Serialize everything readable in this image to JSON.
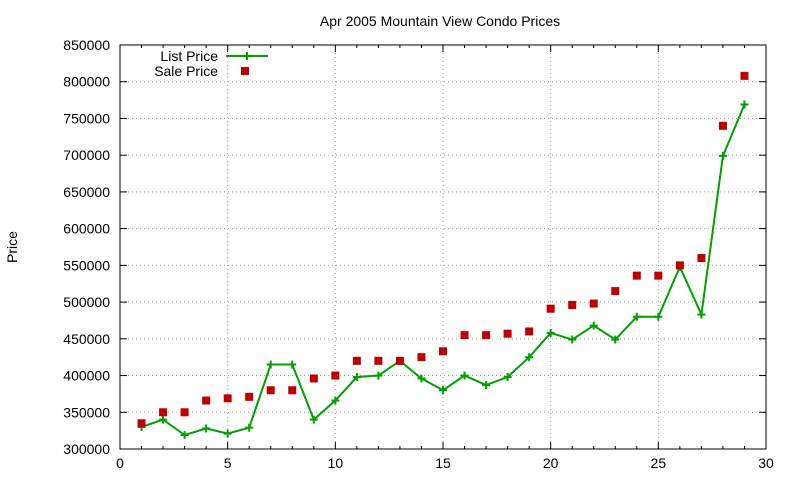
{
  "chart_data": {
    "type": "line",
    "title": "Apr 2005 Mountain View Condo Prices",
    "xlabel": "",
    "ylabel": "Price",
    "xlim": [
      0,
      30
    ],
    "ylim": [
      300000,
      850000
    ],
    "xticks": [
      0,
      5,
      10,
      15,
      20,
      25,
      30
    ],
    "yticks": [
      300000,
      350000,
      400000,
      450000,
      500000,
      550000,
      600000,
      650000,
      700000,
      750000,
      800000,
      850000
    ],
    "grid": true,
    "legend_position": "top-left",
    "series": [
      {
        "name": "List Price",
        "style": "lines+crosses",
        "color": "#00a000",
        "x": [
          1,
          2,
          3,
          4,
          5,
          6,
          7,
          8,
          9,
          10,
          11,
          12,
          13,
          14,
          15,
          16,
          17,
          18,
          19,
          20,
          21,
          22,
          23,
          24,
          25,
          26,
          27,
          28,
          29
        ],
        "y": [
          330000,
          340000,
          319000,
          328000,
          321000,
          329000,
          415000,
          415000,
          340000,
          366000,
          398000,
          400000,
          420000,
          396000,
          380000,
          400000,
          387000,
          398000,
          425000,
          458000,
          449000,
          468000,
          449000,
          480000,
          480000,
          548000,
          483000,
          699000,
          769000
        ]
      },
      {
        "name": "Sale Price",
        "style": "points-square",
        "color": "#c00000",
        "x": [
          1,
          2,
          3,
          4,
          5,
          6,
          7,
          8,
          9,
          10,
          11,
          12,
          13,
          14,
          15,
          16,
          17,
          18,
          19,
          20,
          21,
          22,
          23,
          24,
          25,
          26,
          27,
          28,
          29
        ],
        "y": [
          335000,
          350000,
          350000,
          366000,
          369000,
          371000,
          380000,
          380000,
          396000,
          400000,
          420000,
          420000,
          420000,
          425000,
          433000,
          455000,
          455000,
          457000,
          460000,
          491000,
          496000,
          498000,
          515000,
          536000,
          536000,
          550000,
          560000,
          740000,
          808000
        ]
      }
    ]
  }
}
